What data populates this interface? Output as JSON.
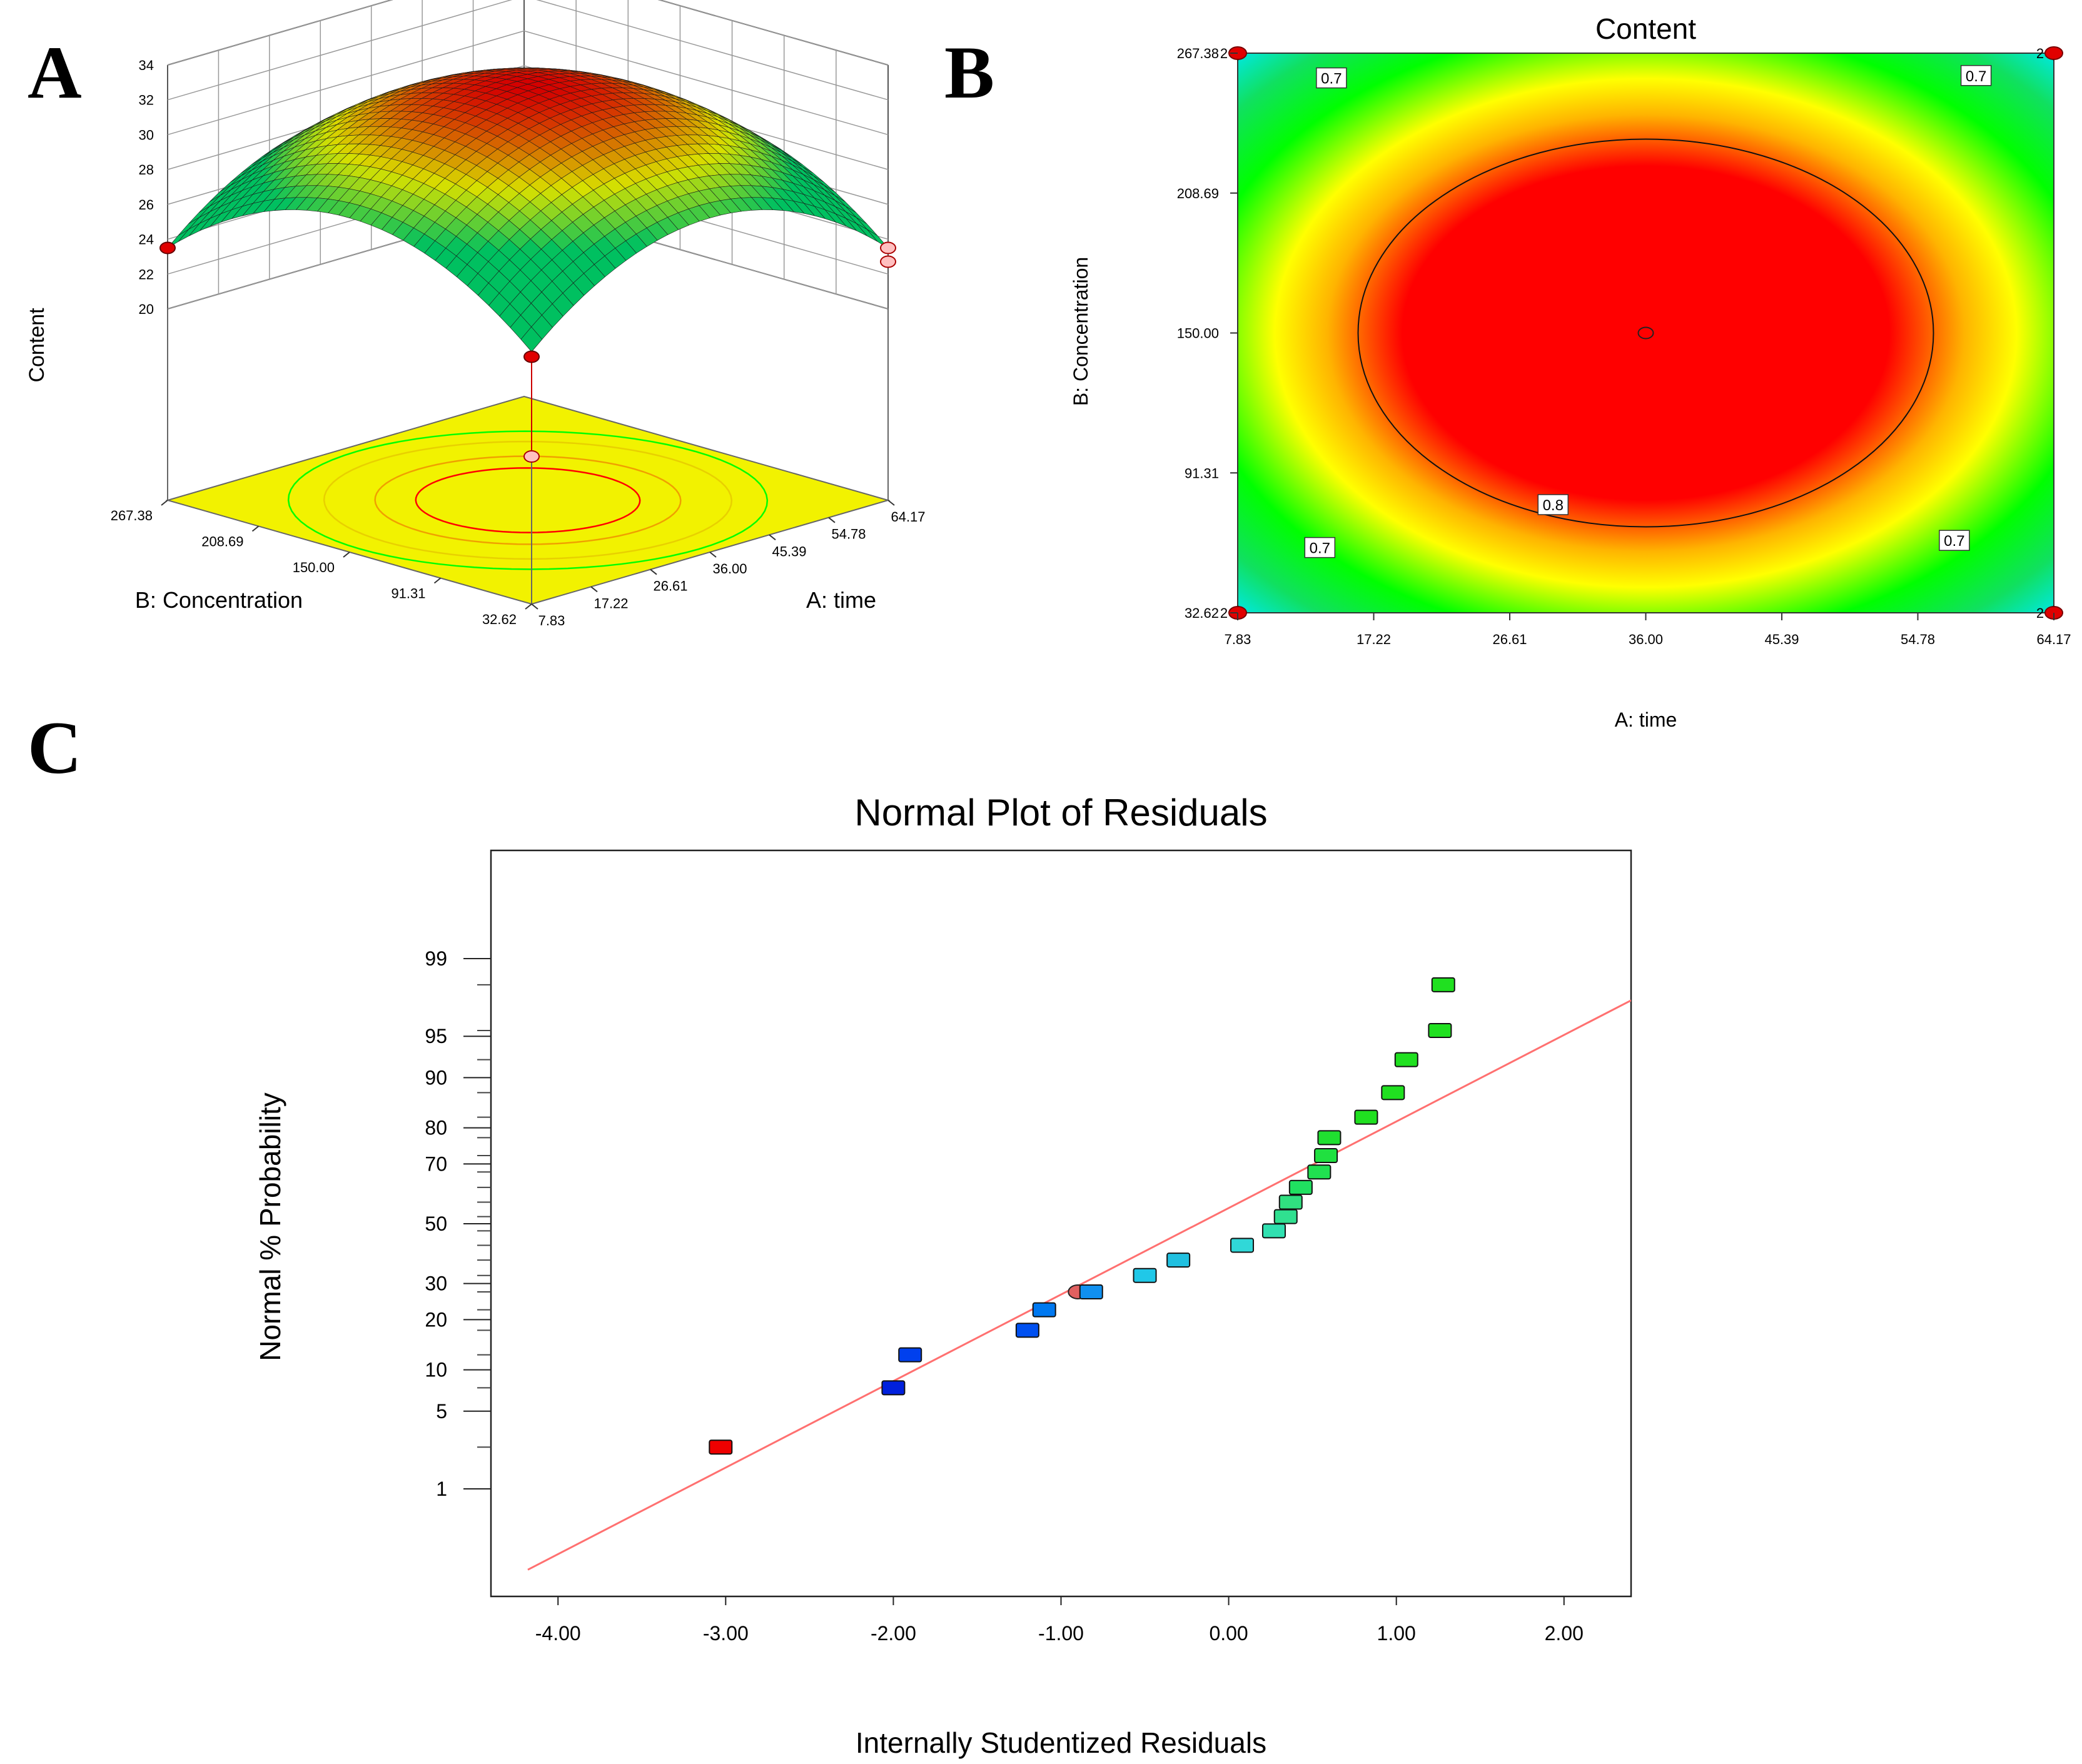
{
  "panels": {
    "a": "A",
    "b": "B",
    "c": "C"
  },
  "colors": {
    "surface_peak": "#d40000",
    "surface_mid": "#d8e000",
    "surface_low": "#00c060",
    "floor": "#f2f200",
    "contour_red": "#ff0000",
    "contour_orange": "#ffb400",
    "contour_yellow": "#ffff00",
    "contour_green": "#00ff00",
    "contour_cyan": "#00e8e8",
    "fit_line": "#ff7070",
    "design_point": "#e00000"
  },
  "chart_data": [
    {
      "type": "surface",
      "panel": "A",
      "zlabel": "Content",
      "xlabel": "A: time",
      "ylabel": "B: Concentration",
      "z_ticks": [
        "20",
        "22",
        "24",
        "26",
        "28",
        "30",
        "32",
        "34"
      ],
      "x_ticks": [
        "7.83",
        "17.22",
        "26.61",
        "36.00",
        "45.39",
        "54.78",
        "64.17"
      ],
      "y_ticks": [
        "32.62",
        "91.31",
        "150.00",
        "208.69",
        "267.38"
      ],
      "xlim": [
        7.83,
        64.17
      ],
      "ylim": [
        32.62,
        267.38
      ],
      "zlim": [
        20,
        34
      ],
      "peak": {
        "x": 36.0,
        "y": 150.0,
        "z": 32.9
      },
      "corner_value": 23.5
    },
    {
      "type": "contour",
      "panel": "B",
      "title": "Content",
      "xlabel": "A: time",
      "ylabel": "B: Concentration",
      "x_ticks": [
        "7.83",
        "17.22",
        "26.61",
        "36.00",
        "45.39",
        "54.78",
        "64.17"
      ],
      "y_ticks": [
        "32.62",
        "91.31",
        "150.00",
        "208.69",
        "267.38"
      ],
      "xlim": [
        7.83,
        64.17
      ],
      "ylim": [
        32.62,
        267.38
      ],
      "contour_labels": [
        {
          "text": "0.7",
          "x": 14.3,
          "y": 257.0
        },
        {
          "text": "0.7",
          "x": 58.8,
          "y": 258.0
        },
        {
          "text": "0.7",
          "x": 13.5,
          "y": 60.0
        },
        {
          "text": "0.7",
          "x": 57.3,
          "y": 63.0
        },
        {
          "text": "0.8",
          "x": 29.6,
          "y": 78.0
        }
      ],
      "design_points": [
        {
          "x": 7.83,
          "y": 267.38,
          "label": "2"
        },
        {
          "x": 64.17,
          "y": 267.38,
          "label": "2"
        },
        {
          "x": 7.83,
          "y": 32.62,
          "label": "2"
        },
        {
          "x": 64.17,
          "y": 32.62,
          "label": "2"
        }
      ],
      "center_point": {
        "x": 36.0,
        "y": 150.0
      }
    },
    {
      "type": "scatter",
      "panel": "C",
      "title": "Normal Plot of Residuals",
      "xlabel": "Internally Studentized Residuals",
      "ylabel": "Normal % Probability",
      "xlim": [
        -4.4,
        2.4
      ],
      "x_ticks": [
        "-4.00",
        "-3.00",
        "-2.00",
        "-1.00",
        "0.00",
        "1.00",
        "2.00"
      ],
      "y_ticks": [
        "1",
        "5",
        "10",
        "20",
        "30",
        "50",
        "70",
        "80",
        "90",
        "95",
        "99"
      ],
      "y_scale": "normal probability",
      "fit_line": [
        {
          "x": -4.18,
          "p": 0.12
        },
        {
          "x": 2.4,
          "p": 97.5
        }
      ],
      "points": [
        {
          "x": -3.03,
          "p": 2.5,
          "color": "#ee0000"
        },
        {
          "x": -2.0,
          "p": 7.5,
          "color": "#0020dd"
        },
        {
          "x": -1.9,
          "p": 12.5,
          "color": "#0040ee"
        },
        {
          "x": -1.2,
          "p": 17.5,
          "color": "#0050f0"
        },
        {
          "x": -1.1,
          "p": 22.5,
          "color": "#0078f0"
        },
        {
          "x": -0.82,
          "p": 27.5,
          "color": "#1090f0"
        },
        {
          "x": -0.5,
          "p": 32.5,
          "color": "#20c8e8"
        },
        {
          "x": -0.3,
          "p": 37.5,
          "color": "#20c0e0"
        },
        {
          "x": 0.08,
          "p": 42.5,
          "color": "#30d8d8"
        },
        {
          "x": 0.27,
          "p": 47.5,
          "color": "#30e0b0"
        },
        {
          "x": 0.34,
          "p": 52.5,
          "color": "#30e090"
        },
        {
          "x": 0.37,
          "p": 57.5,
          "color": "#30e080"
        },
        {
          "x": 0.43,
          "p": 62.5,
          "color": "#20e060"
        },
        {
          "x": 0.54,
          "p": 67.5,
          "color": "#20e050"
        },
        {
          "x": 0.58,
          "p": 72.5,
          "color": "#20e040"
        },
        {
          "x": 0.6,
          "p": 77.5,
          "color": "#20e030"
        },
        {
          "x": 0.82,
          "p": 82.5,
          "color": "#20e020"
        },
        {
          "x": 0.98,
          "p": 87.5,
          "color": "#20e020"
        },
        {
          "x": 1.06,
          "p": 92.5,
          "color": "#20e020"
        },
        {
          "x": 1.26,
          "p": 95.5,
          "color": "#20e020"
        },
        {
          "x": 1.28,
          "p": 98.2,
          "color": "#20e020"
        }
      ],
      "extra_marker": {
        "x": -0.9,
        "p": 27.5,
        "color": "#e06060"
      }
    }
  ]
}
